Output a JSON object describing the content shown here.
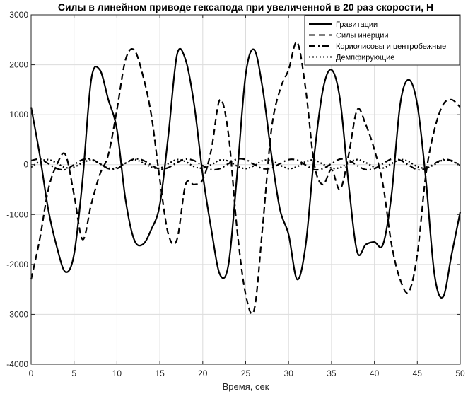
{
  "chart_data": {
    "type": "line",
    "title": "Силы в линейном приводе гексапода при увеличенной в 20 раз скорости, Н",
    "xlabel": "Время, сек",
    "ylabel": "",
    "xlim": [
      0,
      50
    ],
    "ylim": [
      -4000,
      3000
    ],
    "xticks": [
      0,
      5,
      10,
      15,
      20,
      25,
      30,
      35,
      40,
      45,
      50
    ],
    "yticks": [
      -4000,
      -3000,
      -2000,
      -1000,
      0,
      1000,
      2000,
      3000
    ],
    "grid": true,
    "legend_position": "top-right",
    "series": [
      {
        "name": "Гравитации",
        "style": "solid",
        "x": [
          0,
          1,
          2,
          3,
          4,
          5,
          6,
          7,
          8,
          9,
          10,
          11,
          12,
          13,
          14,
          15,
          16,
          17,
          18,
          19,
          20,
          21,
          22,
          23,
          24,
          25,
          26,
          27,
          28,
          29,
          30,
          31,
          32,
          33,
          34,
          35,
          36,
          37,
          38,
          39,
          40,
          41,
          42,
          43,
          44,
          45,
          46,
          47,
          48,
          49,
          50
        ],
        "y": [
          1150,
          200,
          -900,
          -1650,
          -2150,
          -1800,
          -300,
          1700,
          1900,
          1300,
          700,
          -700,
          -1500,
          -1600,
          -1300,
          -800,
          600,
          2200,
          2100,
          1200,
          -200,
          -1300,
          -2200,
          -2000,
          -200,
          1800,
          2300,
          1500,
          200,
          -900,
          -1400,
          -2300,
          -1600,
          200,
          1500,
          1900,
          1300,
          -400,
          -1750,
          -1600,
          -1550,
          -1600,
          -600,
          1200,
          1700,
          1200,
          -300,
          -2200,
          -2650,
          -1800,
          -950
        ]
      },
      {
        "name": "Силы инерции",
        "style": "dashed",
        "x": [
          0,
          1,
          2,
          3,
          4,
          5,
          6,
          7,
          8,
          9,
          10,
          11,
          12,
          13,
          14,
          15,
          16,
          17,
          18,
          19,
          20,
          21,
          22,
          23,
          24,
          25,
          26,
          27,
          28,
          29,
          30,
          31,
          32,
          33,
          34,
          35,
          36,
          37,
          38,
          39,
          40,
          41,
          42,
          43,
          44,
          45,
          46,
          47,
          48,
          49,
          50
        ],
        "y": [
          -2300,
          -1500,
          -500,
          0,
          200,
          -600,
          -1500,
          -800,
          -200,
          200,
          1100,
          2100,
          2300,
          1800,
          1000,
          -300,
          -1400,
          -1500,
          -400,
          -400,
          -300,
          300,
          1300,
          600,
          -1300,
          -2600,
          -2900,
          -1200,
          700,
          1500,
          1900,
          2450,
          1500,
          0,
          -400,
          -100,
          -500,
          200,
          1100,
          800,
          300,
          -400,
          -1600,
          -2300,
          -2550,
          -1800,
          -200,
          700,
          1200,
          1300,
          1150
        ]
      },
      {
        "name": "Кориолисовы и центробежные",
        "style": "dashdot",
        "x": [
          0,
          1,
          2,
          3,
          4,
          5,
          6,
          7,
          8,
          9,
          10,
          11,
          12,
          13,
          14,
          15,
          16,
          17,
          18,
          19,
          20,
          21,
          22,
          23,
          24,
          25,
          26,
          27,
          28,
          29,
          30,
          31,
          32,
          33,
          34,
          35,
          36,
          37,
          38,
          39,
          40,
          41,
          42,
          43,
          44,
          45,
          46,
          47,
          48,
          49,
          50
        ],
        "y": [
          80,
          110,
          20,
          -80,
          -100,
          0,
          100,
          110,
          20,
          -80,
          -80,
          30,
          110,
          90,
          -10,
          -90,
          -60,
          40,
          110,
          80,
          -20,
          -100,
          -80,
          20,
          110,
          100,
          0,
          -80,
          -70,
          20,
          100,
          90,
          -10,
          -100,
          -80,
          20,
          110,
          90,
          -20,
          -100,
          -80,
          20,
          110,
          90,
          -10,
          -100,
          -80,
          20,
          100,
          80,
          -20
        ]
      },
      {
        "name": "Демпфирующие",
        "style": "dotted",
        "x": [
          0,
          1,
          2,
          3,
          4,
          5,
          6,
          7,
          8,
          9,
          10,
          11,
          12,
          13,
          14,
          15,
          16,
          17,
          18,
          19,
          20,
          21,
          22,
          23,
          24,
          25,
          26,
          27,
          28,
          29,
          30,
          31,
          32,
          33,
          34,
          35,
          36,
          37,
          38,
          39,
          40,
          41,
          42,
          43,
          44,
          45,
          46,
          47,
          48,
          49,
          50
        ],
        "y": [
          -50,
          60,
          100,
          30,
          -60,
          -50,
          40,
          90,
          20,
          -70,
          -60,
          30,
          100,
          40,
          -50,
          -70,
          20,
          100,
          60,
          -40,
          -70,
          0,
          90,
          70,
          -30,
          -80,
          -20,
          80,
          80,
          -10,
          -80,
          -40,
          60,
          90,
          10,
          -70,
          -60,
          30,
          100,
          40,
          -50,
          -70,
          20,
          100,
          60,
          -40,
          -70,
          0,
          90,
          70,
          -20
        ]
      }
    ]
  }
}
